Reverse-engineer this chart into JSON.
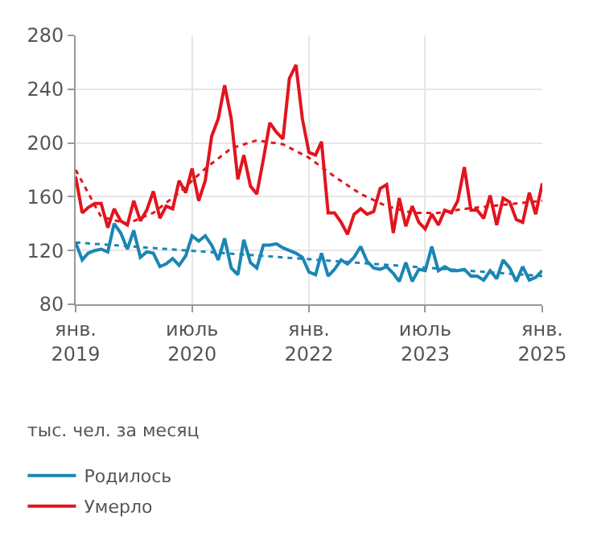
{
  "chart_data": {
    "type": "line",
    "x": [
      "2019-01",
      "2019-02",
      "2019-03",
      "2019-04",
      "2019-05",
      "2019-06",
      "2019-07",
      "2019-08",
      "2019-09",
      "2019-10",
      "2019-11",
      "2019-12",
      "2020-01",
      "2020-02",
      "2020-03",
      "2020-04",
      "2020-05",
      "2020-06",
      "2020-07",
      "2020-08",
      "2020-09",
      "2020-10",
      "2020-11",
      "2020-12",
      "2021-01",
      "2021-02",
      "2021-03",
      "2021-04",
      "2021-05",
      "2021-06",
      "2021-07",
      "2021-08",
      "2021-09",
      "2021-10",
      "2021-11",
      "2021-12",
      "2022-01",
      "2022-02",
      "2022-03",
      "2022-04",
      "2022-05",
      "2022-06",
      "2022-07",
      "2022-08",
      "2022-09",
      "2022-10",
      "2022-11",
      "2022-12",
      "2023-01",
      "2023-02",
      "2023-03",
      "2023-04",
      "2023-05",
      "2023-06",
      "2023-07",
      "2023-08",
      "2023-09",
      "2023-10",
      "2023-11",
      "2023-12",
      "2024-01",
      "2024-02",
      "2024-03",
      "2024-04",
      "2024-05",
      "2024-06",
      "2024-07",
      "2024-08",
      "2024-09",
      "2024-10",
      "2024-11",
      "2024-12",
      "2025-01"
    ],
    "series": [
      {
        "name": "Родилось",
        "color": "#1a86b4",
        "values": [
          126,
          113,
          118,
          120,
          121,
          119,
          140,
          133,
          121,
          135,
          115,
          119,
          118,
          108,
          110,
          114,
          109,
          116,
          131,
          127,
          131,
          124,
          113,
          129,
          107,
          102,
          128,
          111,
          107,
          124,
          124,
          125,
          122,
          120,
          118,
          115,
          104,
          102,
          118,
          101,
          106,
          113,
          110,
          115,
          123,
          112,
          107,
          106,
          108,
          103,
          97,
          111,
          97,
          106,
          105,
          123,
          105,
          108,
          105,
          105,
          106,
          101,
          101,
          98,
          105,
          99,
          113,
          107,
          97,
          108,
          98,
          100,
          105
        ]
      },
      {
        "name": "Умерло",
        "color": "#e3141e",
        "values": [
          175,
          148,
          152,
          155,
          155,
          137,
          151,
          142,
          139,
          157,
          142,
          150,
          164,
          144,
          153,
          151,
          172,
          163,
          181,
          157,
          172,
          205,
          218,
          243,
          218,
          173,
          191,
          168,
          162,
          188,
          215,
          208,
          203,
          248,
          258,
          218,
          193,
          191,
          201,
          148,
          148,
          141,
          132,
          147,
          151,
          147,
          149,
          166,
          169,
          133,
          159,
          138,
          153,
          141,
          136,
          147,
          139,
          150,
          148,
          157,
          182,
          150,
          150,
          144,
          161,
          139,
          159,
          156,
          143,
          141,
          163,
          147,
          170
        ]
      },
      {
        "color": "#1a86b4",
        "line_style": "dotted",
        "x": [
          "2019-01",
          "2025-01"
        ],
        "values": [
          126,
          101
        ]
      },
      {
        "color": "#e3141e",
        "line_style": "dotted",
        "x": [
          "2019-01",
          "2019-05",
          "2019-09",
          "2020-01",
          "2020-05",
          "2020-09",
          "2021-01",
          "2021-05",
          "2021-09",
          "2022-01",
          "2022-05",
          "2022-09",
          "2023-01",
          "2023-05",
          "2023-09",
          "2024-01",
          "2024-05",
          "2024-09",
          "2025-01"
        ],
        "values": [
          180,
          145,
          140,
          148,
          163,
          181,
          196,
          202,
          199,
          189,
          175,
          162,
          153,
          148,
          148,
          151,
          153,
          155,
          157
        ]
      }
    ],
    "xlim": [
      "2019-01",
      "2025-01"
    ],
    "xticks": [
      {
        "value": "2019-01",
        "label": "янв.\n2019"
      },
      {
        "value": "2020-07",
        "label": "июль\n2020"
      },
      {
        "value": "2022-01",
        "label": "янв.\n2022"
      },
      {
        "value": "2023-07",
        "label": "июль\n2023"
      },
      {
        "value": "2025-01",
        "label": "янв.\n2025"
      }
    ],
    "ylim": [
      80,
      280
    ],
    "yticks": [
      80,
      120,
      160,
      200,
      240,
      280
    ],
    "grid": true,
    "legend": "bottom",
    "line_style": "solid",
    "marker": "none",
    "annotations": [
      "тыс. чел. за месяц"
    ]
  }
}
